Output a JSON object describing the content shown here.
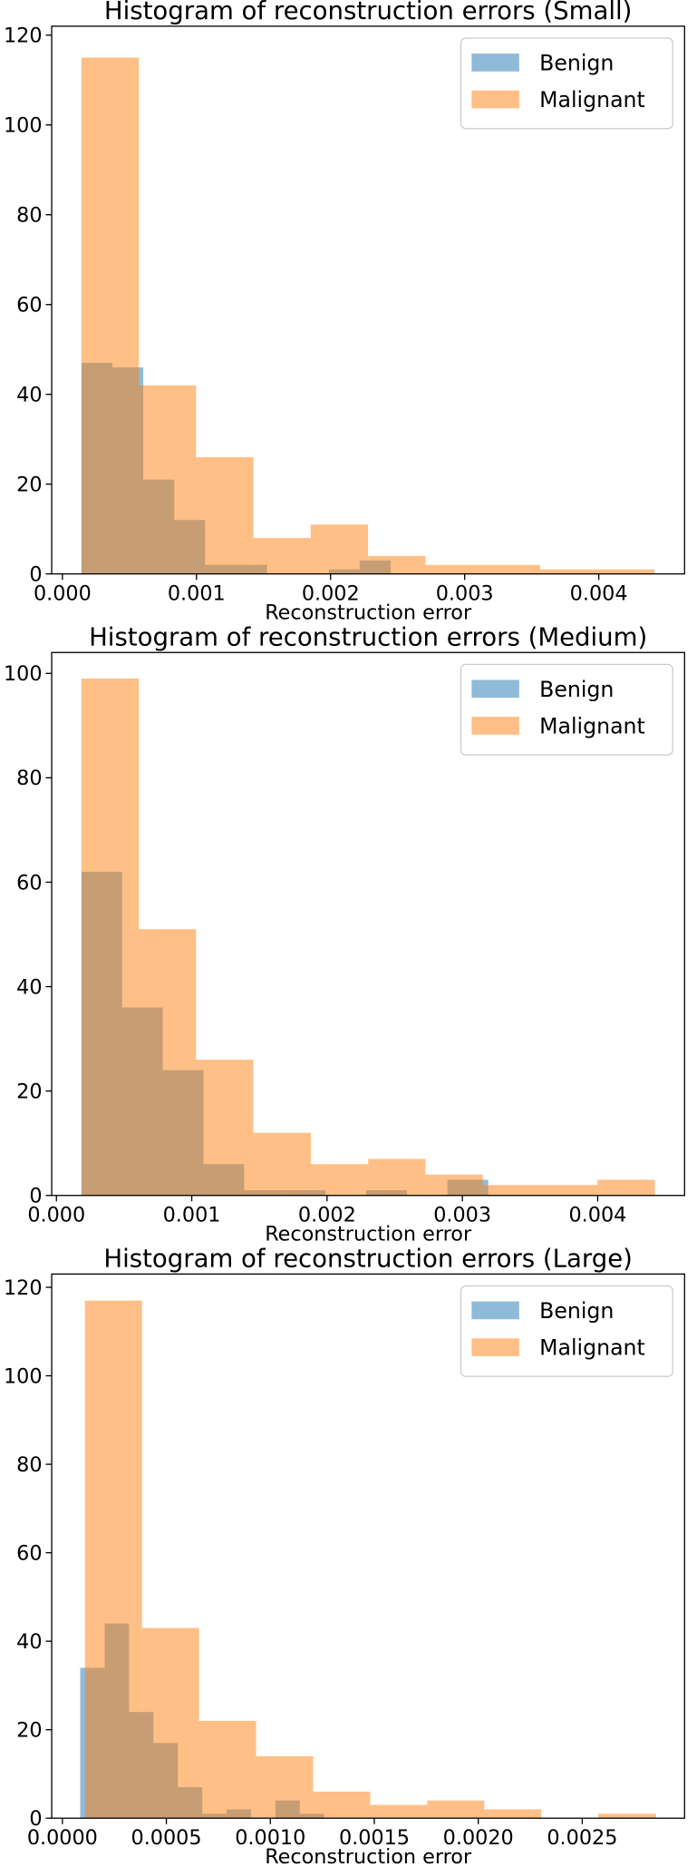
{
  "chart_data": [
    {
      "type": "histogram",
      "title": "Histogram of reconstruction errors (Small)",
      "xlabel": "Reconstruction error",
      "xlim": [
        -8e-05,
        0.00464
      ],
      "ylim": [
        0,
        122
      ],
      "xticks": [
        {
          "value": 0,
          "label": "0.000"
        },
        {
          "value": 0.001,
          "label": "0.001"
        },
        {
          "value": 0.002,
          "label": "0.002"
        },
        {
          "value": 0.003,
          "label": "0.003"
        },
        {
          "value": 0.004,
          "label": "0.004"
        }
      ],
      "yticks": [
        0,
        20,
        40,
        60,
        80,
        100,
        120
      ],
      "legend": "upper right",
      "series": [
        {
          "name": "Benign",
          "color": "#1f77b4",
          "bins": [
            0.000142,
            0.000373,
            0.000603,
            0.000834,
            0.001064,
            0.001295,
            0.001526,
            0.001756,
            0.001987,
            0.002217,
            0.002448
          ],
          "values": [
            47,
            46,
            21,
            12,
            2,
            2,
            0,
            0,
            1,
            3
          ]
        },
        {
          "name": "Malignant",
          "color": "#ff7f0e",
          "bins": [
            0.000142,
            0.00057,
            0.000997,
            0.001425,
            0.001852,
            0.00228,
            0.002707,
            0.003135,
            0.003562,
            0.00399,
            0.004417
          ],
          "values": [
            115,
            42,
            26,
            8,
            11,
            4,
            2,
            2,
            1,
            1
          ]
        }
      ]
    },
    {
      "type": "histogram",
      "title": "Histogram of reconstruction errors (Medium)",
      "xlabel": "Reconstruction error",
      "xlim": [
        -3.5e-05,
        0.004642
      ],
      "ylim": [
        0,
        104
      ],
      "xticks": [
        {
          "value": 0,
          "label": "0.000"
        },
        {
          "value": 0.001,
          "label": "0.001"
        },
        {
          "value": 0.002,
          "label": "0.002"
        },
        {
          "value": 0.003,
          "label": "0.003"
        },
        {
          "value": 0.004,
          "label": "0.004"
        }
      ],
      "yticks": [
        0,
        20,
        40,
        60,
        80,
        100
      ],
      "legend": "upper right",
      "series": [
        {
          "name": "Benign",
          "color": "#1f77b4",
          "bins": [
            0.000185,
            0.000486,
            0.000786,
            0.001087,
            0.001387,
            0.001688,
            0.001989,
            0.002289,
            0.00259,
            0.00289,
            0.003191
          ],
          "values": [
            62,
            36,
            24,
            6,
            1,
            1,
            0,
            1,
            0,
            3
          ]
        },
        {
          "name": "Malignant",
          "color": "#ff7f0e",
          "bins": [
            0.000185,
            0.000609,
            0.001032,
            0.001456,
            0.00188,
            0.002304,
            0.002727,
            0.003151,
            0.003575,
            0.003998,
            0.004422
          ],
          "values": [
            99,
            51,
            26,
            12,
            6,
            7,
            4,
            2,
            2,
            3
          ]
        }
      ]
    },
    {
      "type": "histogram",
      "title": "Histogram of reconstruction errors (Large)",
      "xlabel": "Reconstruction error",
      "xlim": [
        -5.15e-05,
        0.002992
      ],
      "ylim": [
        0,
        123
      ],
      "xticks": [
        {
          "value": 0,
          "label": "0.0000"
        },
        {
          "value": 0.0005,
          "label": "0.0005"
        },
        {
          "value": 0.001,
          "label": "0.0010"
        },
        {
          "value": 0.0015,
          "label": "0.0015"
        },
        {
          "value": 0.002,
          "label": "0.0020"
        },
        {
          "value": 0.0025,
          "label": "0.0025"
        }
      ],
      "yticks": [
        0,
        20,
        40,
        60,
        80,
        100,
        120
      ],
      "legend": "upper right",
      "series": [
        {
          "name": "Benign",
          "color": "#1f77b4",
          "bins": [
            8.58e-05,
            0.0002031,
            0.0003205,
            0.0004378,
            0.0005551,
            0.0006724,
            0.0007898,
            0.0009071,
            0.0010244,
            0.0011417,
            0.001259
          ],
          "values": [
            34,
            44,
            24,
            17,
            7,
            1,
            2,
            0,
            4,
            1
          ]
        },
        {
          "name": "Malignant",
          "color": "#ff7f0e",
          "bins": [
            0.0001087,
            0.000383,
            0.0006572,
            0.0009315,
            0.0012057,
            0.00148,
            0.0017543,
            0.0020286,
            0.0023028,
            0.0025771,
            0.002855
          ],
          "values": [
            117,
            43,
            22,
            14,
            6,
            3,
            4,
            2,
            0,
            1
          ]
        }
      ]
    }
  ]
}
